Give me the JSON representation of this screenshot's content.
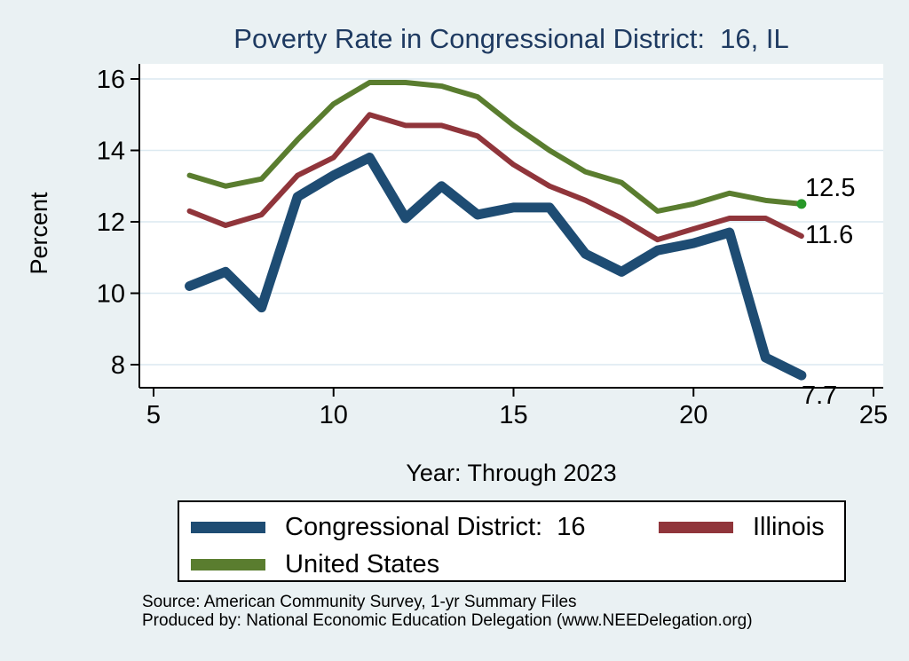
{
  "title": {
    "text": "Poverty Rate in Congressional District:  16, IL"
  },
  "notes": {
    "source": "Source: American Community Survey, 1-yr Summary Files",
    "produced_by": "Produced by: National Economic Education Delegation (www.NEEDelegation.org)"
  },
  "colors": {
    "background": "#eaf1f3",
    "plot_background": "#ffffff",
    "gridline": "#dce9f1",
    "axis": "#000000",
    "title": "#1e3a61",
    "end_dot": "#289828"
  },
  "chart_data": {
    "type": "line",
    "title": "Poverty Rate in Congressional District:  16, IL",
    "xlabel": "Year: Through 2023",
    "ylabel": "Percent",
    "xlim": [
      5,
      25
    ],
    "ylim": [
      7.3,
      16.4
    ],
    "x_ticks": [
      5,
      10,
      15,
      20,
      25
    ],
    "y_ticks": [
      8,
      10,
      12,
      14,
      16
    ],
    "grid": true,
    "legend_position": "bottom",
    "x": [
      6,
      7,
      8,
      9,
      10,
      11,
      12,
      13,
      14,
      15,
      16,
      17,
      18,
      19,
      20,
      21,
      22,
      23
    ],
    "series": [
      {
        "name": "Congressional District:  16",
        "color": "#1e4c73",
        "stroke_width": 11,
        "end_label": "7.7",
        "end_marker": false,
        "values": [
          10.2,
          10.6,
          9.6,
          12.7,
          13.3,
          13.8,
          12.1,
          13.0,
          12.2,
          12.4,
          12.4,
          11.1,
          10.6,
          11.2,
          11.4,
          11.7,
          8.2,
          7.7
        ]
      },
      {
        "name": "Illinois",
        "color": "#90353b",
        "stroke_width": 6,
        "end_label": "11.6",
        "end_marker": false,
        "values": [
          12.3,
          11.9,
          12.2,
          13.3,
          13.8,
          15.0,
          14.7,
          14.7,
          14.4,
          13.6,
          13.0,
          12.6,
          12.1,
          11.5,
          11.8,
          12.1,
          12.1,
          11.6
        ]
      },
      {
        "name": "United States",
        "color": "#5a7d2f",
        "stroke_width": 6,
        "end_label": "12.5",
        "end_marker": true,
        "values": [
          13.3,
          13.0,
          13.2,
          14.3,
          15.3,
          15.9,
          15.9,
          15.8,
          15.5,
          14.7,
          14.0,
          13.4,
          13.1,
          12.3,
          12.5,
          12.8,
          12.6,
          12.5
        ]
      }
    ]
  }
}
